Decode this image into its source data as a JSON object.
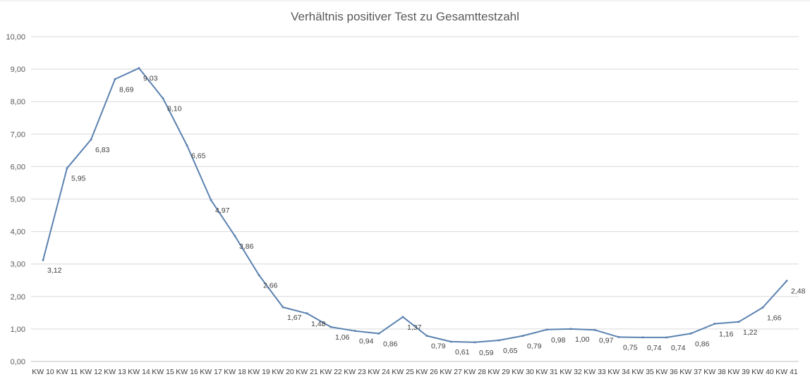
{
  "chart_data": {
    "type": "line",
    "title": "Verhältnis positiver Test zu Gesamttestzahl",
    "xlabel": "",
    "ylabel": "",
    "ylim": [
      0,
      10
    ],
    "yticks": [
      "0,00",
      "1,00",
      "2,00",
      "3,00",
      "4,00",
      "5,00",
      "6,00",
      "7,00",
      "8,00",
      "9,00",
      "10,00"
    ],
    "grid": true,
    "legend": "none",
    "line_color": "#5b82b0",
    "categories": [
      "KW 10",
      "KW 11",
      "KW 12",
      "KW 13",
      "KW 14",
      "KW 15",
      "KW 16",
      "KW 17",
      "KW 18",
      "KW 19",
      "KW 20",
      "KW 21",
      "KW 22",
      "KW 23",
      "KW 24",
      "KW 25",
      "KW 26",
      "KW 27",
      "KW 28",
      "KW 29",
      "KW 30",
      "KW 31",
      "KW 32",
      "KW 33",
      "KW 34",
      "KW 35",
      "KW 36",
      "KW 37",
      "KW 38",
      "KW 39",
      "KW 40",
      "KW 41"
    ],
    "series": [
      {
        "values": [
          3.12,
          5.95,
          6.83,
          8.69,
          9.03,
          8.1,
          6.65,
          4.97,
          3.86,
          2.66,
          1.67,
          1.48,
          1.06,
          0.94,
          0.86,
          1.37,
          0.79,
          0.61,
          0.59,
          0.65,
          0.79,
          0.98,
          1.0,
          0.97,
          0.75,
          0.74,
          0.74,
          0.86,
          1.16,
          1.22,
          1.66,
          2.48
        ],
        "labels": [
          "3,12",
          "5,95",
          "6,83",
          "8,69",
          "9,03",
          "8,10",
          "6,65",
          "4,97",
          "3,86",
          "2,66",
          "1,67",
          "1,48",
          "1,06",
          "0,94",
          "0,86",
          "1,37",
          "0,79",
          "0,61",
          "0,59",
          "0,65",
          "0,79",
          "0,98",
          "1,00",
          "0,97",
          "0,75",
          "0,74",
          "0,74",
          "0,86",
          "1,16",
          "1,22",
          "1,66",
          "2,48"
        ]
      }
    ]
  }
}
